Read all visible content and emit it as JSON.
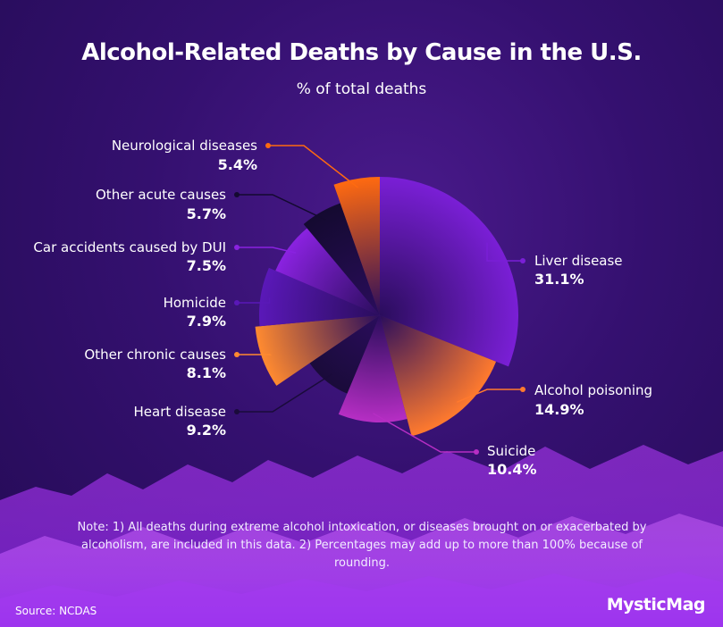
{
  "title": "Alcohol-Related Deaths by Cause in the U.S.",
  "subtitle": "% of total deaths",
  "note": "Note: 1) All deaths during extreme alcohol intoxication, or diseases brought on or exacerbated by alcoholism, are included in this data. 2) Percentages may add up to more than 100% because of rounding.",
  "source": "Source: NCDAS",
  "brand": "MysticMag",
  "chart_data": {
    "type": "pie",
    "title": "Alcohol-Related Deaths by Cause in the U.S.",
    "subtitle": "% of total deaths",
    "slices": [
      {
        "label": "Liver disease",
        "value": 31.1,
        "value_label": "31.1%",
        "color": "#7a1fd6"
      },
      {
        "label": "Alcohol poisoning",
        "value": 14.9,
        "value_label": "14.9%",
        "color": "#ff7a2e"
      },
      {
        "label": "Suicide",
        "value": 10.4,
        "value_label": "10.4%",
        "color": "#b62ec4"
      },
      {
        "label": "Heart disease",
        "value": 9.2,
        "value_label": "9.2%",
        "color": "#1a0b3a"
      },
      {
        "label": "Other chronic causes",
        "value": 8.1,
        "value_label": "8.1%",
        "color": "#ff8a30"
      },
      {
        "label": "Homicide",
        "value": 7.9,
        "value_label": "7.9%",
        "color": "#5a18b8"
      },
      {
        "label": "Car accidents caused by DUI",
        "value": 7.5,
        "value_label": "7.5%",
        "color": "#8a22e0"
      },
      {
        "label": "Other acute causes",
        "value": 5.7,
        "value_label": "5.7%",
        "color": "#140a30"
      },
      {
        "label": "Neurological diseases",
        "value": 5.4,
        "value_label": "5.4%",
        "color": "#ff6a10"
      }
    ],
    "start": "12 o'clock, clockwise",
    "legend": "callout labels"
  }
}
